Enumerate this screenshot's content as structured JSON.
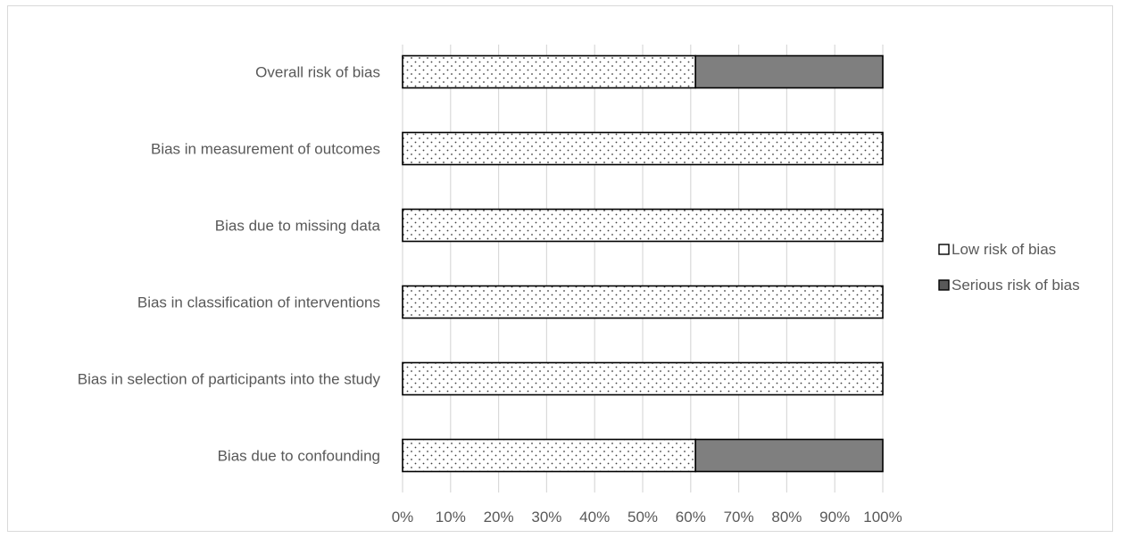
{
  "chart_data": {
    "type": "bar",
    "orientation": "horizontal",
    "stacked": true,
    "categories": [
      "Overall risk of bias",
      "Bias in measurement of outcomes",
      "Bias due to missing data",
      "Bias in classification of interventions",
      "Bias in selection of participants into the study",
      "Bias due to confounding"
    ],
    "series": [
      {
        "name": "Low risk of bias",
        "values": [
          61,
          100,
          100,
          100,
          100,
          61
        ],
        "pattern": "dots",
        "color": "#ffffff"
      },
      {
        "name": "Serious risk of bias",
        "values": [
          39,
          0,
          0,
          0,
          0,
          39
        ],
        "pattern": "solid",
        "color": "#7f7f7f"
      }
    ],
    "x_ticks": [
      "0%",
      "10%",
      "20%",
      "30%",
      "40%",
      "50%",
      "60%",
      "70%",
      "80%",
      "90%",
      "100%"
    ],
    "xlim": [
      0,
      100
    ],
    "grid": true,
    "legend_position": "right",
    "title": "",
    "xlabel": "",
    "ylabel": ""
  }
}
